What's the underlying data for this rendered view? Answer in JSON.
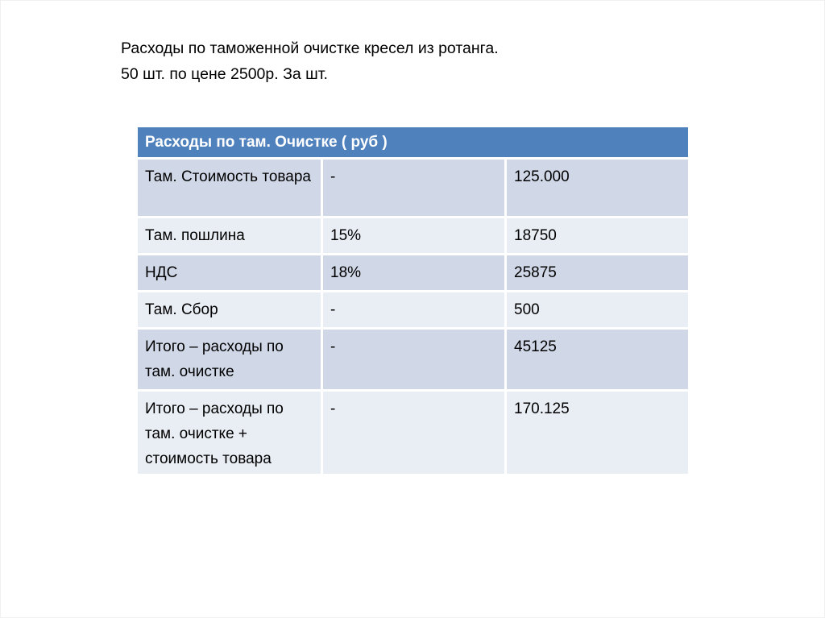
{
  "title": {
    "line1": "Расходы по таможенной очистке кресел из ротанга.",
    "line2": "50 шт. по цене 2500р. За шт."
  },
  "table": {
    "header": "Расходы по там. Очистке ( руб )",
    "rows": [
      {
        "label": "Там. Стоимость товара",
        "rate": "-",
        "value": "125.000"
      },
      {
        "label": "Там. пошлина",
        "rate": "15%",
        "value": "18750"
      },
      {
        "label": "НДС",
        "rate": "18%",
        "value": "25875"
      },
      {
        "label": "Там. Сбор",
        "rate": "-",
        "value": "500"
      },
      {
        "label": "Итого – расходы по там. очистке",
        "rate": "-",
        "value": "45125"
      },
      {
        "label": "Итого – расходы по там. очистке + стоимость товара",
        "rate": "-",
        "value": "170.125"
      }
    ]
  },
  "colors": {
    "header": "#4f81bd",
    "row_dark": "#d0d8e8",
    "row_light": "#e9edf4"
  }
}
